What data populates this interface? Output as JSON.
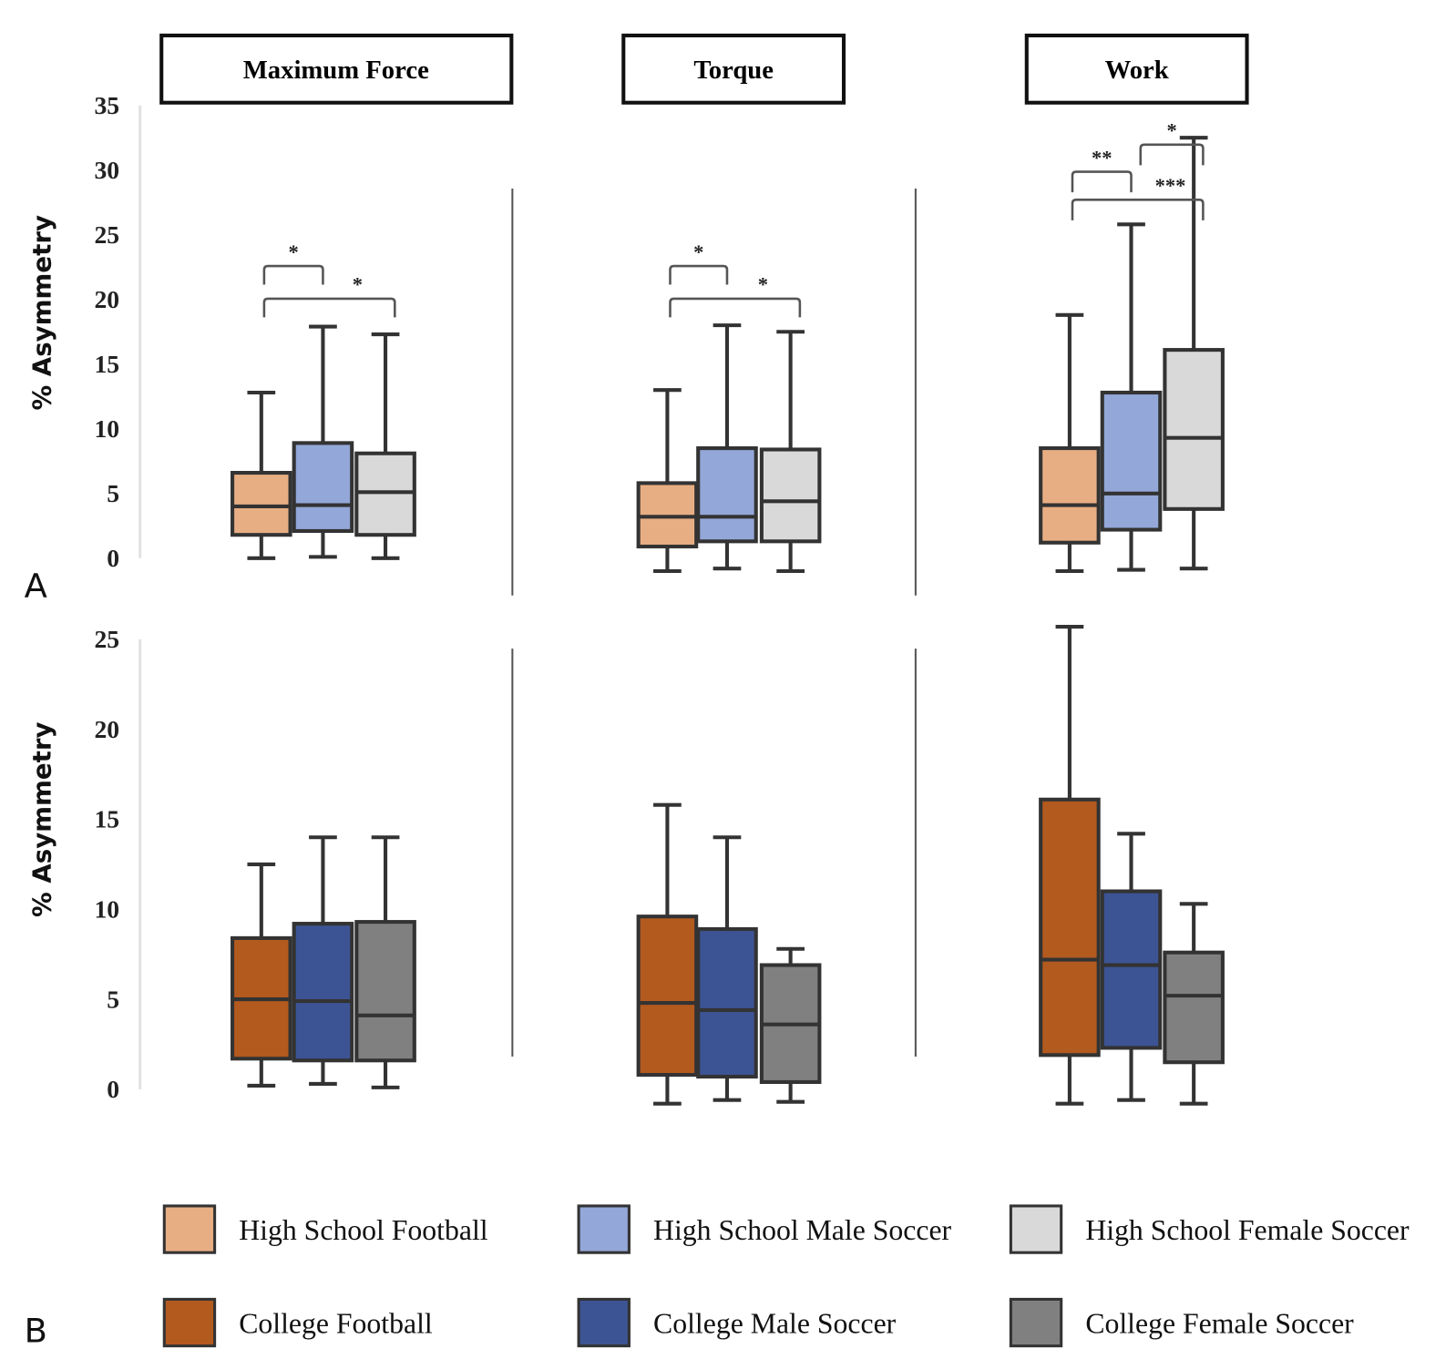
{
  "chart_data": {
    "type": "box",
    "ylabel": "% Asymmetry",
    "metrics": [
      "Maximum Force",
      "Torque",
      "Work"
    ],
    "panels": [
      {
        "label": "A",
        "ylim": [
          0,
          35
        ],
        "yticks": [
          "0",
          "5",
          "10",
          "15",
          "20",
          "25",
          "30",
          "35"
        ],
        "groups": [
          "High School Football",
          "High School Male Soccer",
          "High School Female Soccer"
        ],
        "boxes": {
          "Maximum Force": [
            {
              "group": "High School Football",
              "min": 0.0,
              "q1": 1.8,
              "median": 4.0,
              "q3": 6.6,
              "max": 12.8
            },
            {
              "group": "High School Male Soccer",
              "min": 0.1,
              "q1": 2.1,
              "median": 4.1,
              "q3": 8.9,
              "max": 17.9
            },
            {
              "group": "High School Female Soccer",
              "min": 0.0,
              "q1": 1.8,
              "median": 5.1,
              "q3": 8.1,
              "max": 17.3
            }
          ],
          "Torque": [
            {
              "group": "High School Football",
              "min": -1.0,
              "q1": 0.9,
              "median": 3.2,
              "q3": 5.8,
              "max": 13.0
            },
            {
              "group": "High School Male Soccer",
              "min": -0.8,
              "q1": 1.3,
              "median": 3.2,
              "q3": 8.5,
              "max": 18.0
            },
            {
              "group": "High School Female Soccer",
              "min": -1.0,
              "q1": 1.3,
              "median": 4.4,
              "q3": 8.4,
              "max": 17.5
            }
          ],
          "Work": [
            {
              "group": "High School Football",
              "min": -1.0,
              "q1": 1.2,
              "median": 4.1,
              "q3": 8.5,
              "max": 18.8
            },
            {
              "group": "High School Male Soccer",
              "min": -0.9,
              "q1": 2.2,
              "median": 5.0,
              "q3": 12.8,
              "max": 25.8
            },
            {
              "group": "High School Female Soccer",
              "min": -0.8,
              "q1": 3.8,
              "median": 9.3,
              "q3": 16.1,
              "max": 32.5
            }
          ]
        },
        "significance": {
          "Maximum Force": [
            {
              "from": 0,
              "to": 1,
              "label": "*",
              "level": 2
            },
            {
              "from": 0,
              "to": 2,
              "label": "*",
              "level": 1
            }
          ],
          "Torque": [
            {
              "from": 0,
              "to": 1,
              "label": "*",
              "level": 2
            },
            {
              "from": 0,
              "to": 2,
              "label": "*",
              "level": 1
            }
          ],
          "Work": [
            {
              "from": 0,
              "to": 1,
              "label": "**",
              "level": 2
            },
            {
              "from": 1,
              "to": 2,
              "label": "*",
              "level": 3
            },
            {
              "from": 0,
              "to": 2,
              "label": "***",
              "level": 1
            }
          ]
        }
      },
      {
        "label": "B",
        "ylim": [
          0,
          25
        ],
        "yticks": [
          "0",
          "5",
          "10",
          "15",
          "20",
          "25"
        ],
        "groups": [
          "College Football",
          "College Male Soccer",
          "College Female Soccer"
        ],
        "boxes": {
          "Maximum Force": [
            {
              "group": "College Football",
              "min": 0.2,
              "q1": 1.7,
              "median": 5.0,
              "q3": 8.4,
              "max": 12.5
            },
            {
              "group": "College Male Soccer",
              "min": 0.3,
              "q1": 1.6,
              "median": 4.9,
              "q3": 9.2,
              "max": 14.0
            },
            {
              "group": "College Female Soccer",
              "min": 0.1,
              "q1": 1.6,
              "median": 4.1,
              "q3": 9.3,
              "max": 14.0
            }
          ],
          "Torque": [
            {
              "group": "College Football",
              "min": -0.8,
              "q1": 0.8,
              "median": 4.8,
              "q3": 9.6,
              "max": 15.8
            },
            {
              "group": "College Male Soccer",
              "min": -0.6,
              "q1": 0.7,
              "median": 4.4,
              "q3": 8.9,
              "max": 14.0
            },
            {
              "group": "College Female Soccer",
              "min": -0.7,
              "q1": 0.4,
              "median": 3.6,
              "q3": 6.9,
              "max": 7.8
            }
          ],
          "Work": [
            {
              "group": "College Football",
              "min": -0.8,
              "q1": 1.9,
              "median": 7.2,
              "q3": 16.1,
              "max": 25.7
            },
            {
              "group": "College Male Soccer",
              "min": -0.6,
              "q1": 2.3,
              "median": 6.9,
              "q3": 11.0,
              "max": 14.2
            },
            {
              "group": "College Female Soccer",
              "min": -0.8,
              "q1": 1.5,
              "median": 5.2,
              "q3": 7.6,
              "max": 10.3
            }
          ]
        },
        "significance": {}
      }
    ],
    "legend": [
      {
        "label": "High School Football",
        "color": "#e8ae83"
      },
      {
        "label": "High School Male Soccer",
        "color": "#93a8d8"
      },
      {
        "label": "High School Female Soccer",
        "color": "#d9d9d9"
      },
      {
        "label": "College Football",
        "color": "#b35a1f"
      },
      {
        "label": "College Male Soccer",
        "color": "#3d5494"
      },
      {
        "label": "College Female Soccer",
        "color": "#808080"
      }
    ],
    "legend_position": "bottom",
    "grid": false
  }
}
